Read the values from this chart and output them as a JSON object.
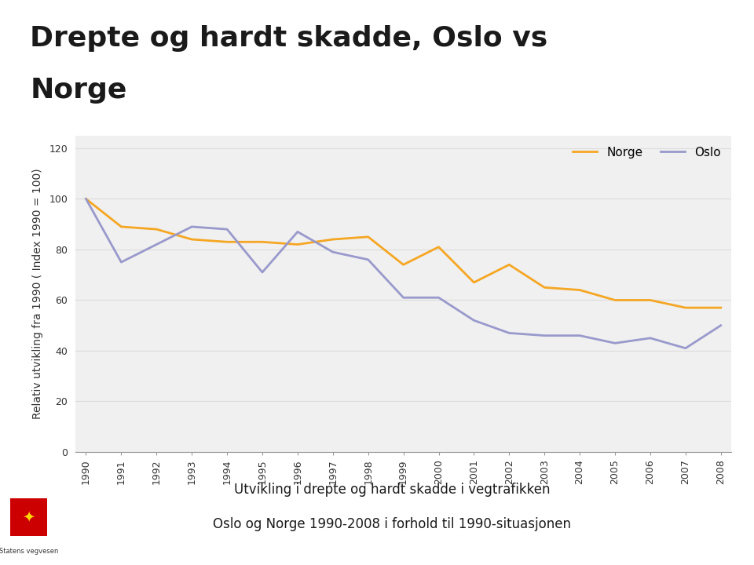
{
  "title_line1": "Drepte og hardt skadde, Oslo vs",
  "title_line2": "Norge",
  "ylabel": "Relativ utvikling fra 1990 ( Index 1990 = 100)",
  "subtitle_line1": "Utvikling i drepte og hardt skadde i vegtrafikken",
  "subtitle_line2": "Oslo og Norge 1990-2008 i forhold til 1990-situasjonen",
  "years": [
    1990,
    1991,
    1992,
    1993,
    1994,
    1995,
    1996,
    1997,
    1998,
    1999,
    2000,
    2001,
    2002,
    2003,
    2004,
    2005,
    2006,
    2007,
    2008
  ],
  "norge": [
    100,
    89,
    88,
    84,
    83,
    83,
    82,
    84,
    85,
    74,
    81,
    67,
    74,
    65,
    64,
    60,
    60,
    57,
    57
  ],
  "oslo": [
    100,
    75,
    82,
    89,
    88,
    71,
    87,
    79,
    76,
    61,
    61,
    52,
    47,
    46,
    46,
    43,
    45,
    41,
    50
  ],
  "norge_color": "#F5A623",
  "oslo_color": "#9999CC",
  "background_title": "#CCCCCC",
  "background_chart": "#F0F0F0",
  "background_fig": "#FFFFFF",
  "ylim": [
    0,
    125
  ],
  "yticks": [
    0,
    20,
    40,
    60,
    80,
    100,
    120
  ],
  "grid_color": "#DDDDDD",
  "line_width": 2.0,
  "title_fontsize": 26,
  "axis_label_fontsize": 10,
  "tick_fontsize": 9,
  "legend_fontsize": 11
}
